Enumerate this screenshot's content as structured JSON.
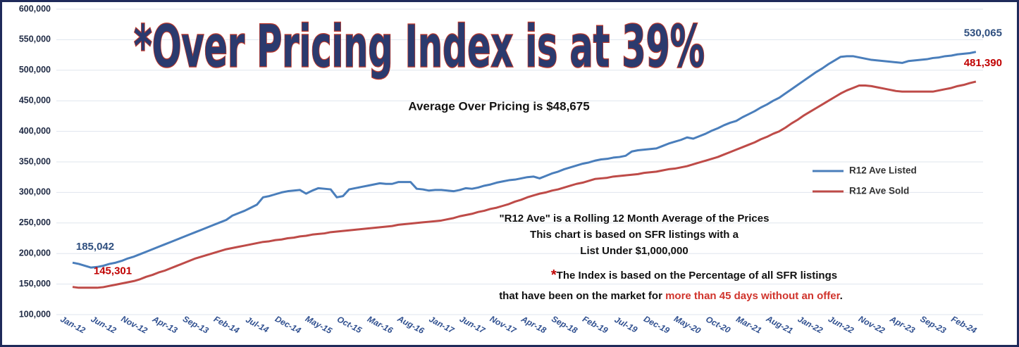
{
  "chart_data": {
    "type": "line",
    "title": "*Over Pricing Index is at 39%",
    "subtitle": "Average Over Pricing is $48,675",
    "notes": [
      "\"R12 Ave\" is a Rolling 12 Month Average of the Prices",
      "This chart is based on SFR listings with a",
      "List Under $1,000,000"
    ],
    "index_note": {
      "star": "*",
      "line1": "The Index is based on the Percentage of all SFR listings",
      "line2_start": "that have been on the market for ",
      "line2_highlight": "more than 45 days without an offer",
      "line2_end": "."
    },
    "legend": "right",
    "grid": true,
    "ylim": [
      100000,
      600000
    ],
    "yticks": [
      {
        "value": 100000,
        "label": "100,000"
      },
      {
        "value": 150000,
        "label": "150,000"
      },
      {
        "value": 200000,
        "label": "200,000"
      },
      {
        "value": 250000,
        "label": "250,000"
      },
      {
        "value": 300000,
        "label": "300,000"
      },
      {
        "value": 350000,
        "label": "350,000"
      },
      {
        "value": 400000,
        "label": "400,000"
      },
      {
        "value": 450000,
        "label": "450,000"
      },
      {
        "value": 500000,
        "label": "500,000"
      },
      {
        "value": 550000,
        "label": "550,000"
      },
      {
        "value": 600000,
        "label": "600,000"
      }
    ],
    "categories": [
      "Jan-12",
      null,
      null,
      null,
      null,
      "Jun-12",
      null,
      null,
      null,
      null,
      "Nov-12",
      null,
      null,
      null,
      null,
      "Apr-13",
      null,
      null,
      null,
      null,
      "Sep-13",
      null,
      null,
      null,
      null,
      "Feb-14",
      null,
      null,
      null,
      null,
      "Jul-14",
      null,
      null,
      null,
      null,
      "Dec-14",
      null,
      null,
      null,
      null,
      "May-15",
      null,
      null,
      null,
      null,
      "Oct-15",
      null,
      null,
      null,
      null,
      "Mar-16",
      null,
      null,
      null,
      null,
      "Aug-16",
      null,
      null,
      null,
      null,
      "Jan-17",
      null,
      null,
      null,
      null,
      "Jun-17",
      null,
      null,
      null,
      null,
      "Nov-17",
      null,
      null,
      null,
      null,
      "Apr-18",
      null,
      null,
      null,
      null,
      "Sep-18",
      null,
      null,
      null,
      null,
      "Feb-19",
      null,
      null,
      null,
      null,
      "Jul-19",
      null,
      null,
      null,
      null,
      "Dec-19",
      null,
      null,
      null,
      null,
      "May-20",
      null,
      null,
      null,
      null,
      "Oct-20",
      null,
      null,
      null,
      null,
      "Mar-21",
      null,
      null,
      null,
      null,
      "Aug-21",
      null,
      null,
      null,
      null,
      "Jan-22",
      null,
      null,
      null,
      null,
      "Jun-22",
      null,
      null,
      null,
      null,
      "Nov-22",
      null,
      null,
      null,
      null,
      "Apr-23",
      null,
      null,
      null,
      null,
      "Sep-23",
      null,
      null,
      null,
      null,
      "Feb-24",
      null,
      null
    ],
    "series": [
      {
        "name": "R12 Ave Listed",
        "color": "#4a7ebb",
        "values": [
          185042,
          183000,
          180000,
          177000,
          178000,
          180000,
          183000,
          185000,
          188000,
          192000,
          195000,
          199000,
          203000,
          207000,
          211000,
          215000,
          219000,
          223000,
          227000,
          231000,
          235000,
          239000,
          243000,
          247000,
          251000,
          255000,
          262000,
          266000,
          270000,
          275000,
          280000,
          292000,
          294000,
          297000,
          300000,
          302000,
          303000,
          304000,
          298000,
          303000,
          307000,
          306000,
          305000,
          292000,
          294000,
          305000,
          307000,
          309000,
          311000,
          313000,
          315000,
          314000,
          314000,
          317000,
          317000,
          317000,
          306000,
          305000,
          303000,
          304000,
          304000,
          303000,
          302000,
          304000,
          307000,
          306000,
          308000,
          311000,
          313000,
          316000,
          318000,
          320000,
          321000,
          323000,
          325000,
          326000,
          323000,
          327000,
          331000,
          334000,
          338000,
          341000,
          344000,
          347000,
          349000,
          352000,
          354000,
          355000,
          357000,
          358000,
          360000,
          367000,
          369000,
          370000,
          371000,
          372000,
          376000,
          380000,
          383000,
          386000,
          390000,
          388000,
          392000,
          396000,
          401000,
          405000,
          410000,
          414000,
          417000,
          423000,
          428000,
          433000,
          439000,
          444000,
          450000,
          455000,
          462000,
          469000,
          476000,
          483000,
          490000,
          497000,
          503000,
          510000,
          516000,
          522000,
          523000,
          523000,
          521000,
          519000,
          517000,
          516000,
          515000,
          514000,
          513000,
          512000,
          515000,
          516000,
          517000,
          518000,
          520000,
          521000,
          523000,
          524000,
          526000,
          527000,
          528000,
          530065
        ],
        "value_labels": {
          "0": "185,042",
          "147": "530,065"
        }
      },
      {
        "name": "R12 Ave Sold",
        "color": "#be4b48",
        "values": [
          145301,
          144000,
          144000,
          144000,
          144000,
          145000,
          147000,
          149000,
          151000,
          153000,
          155000,
          158000,
          162000,
          165000,
          169000,
          172000,
          176000,
          180000,
          184000,
          188000,
          192000,
          195000,
          198000,
          201000,
          204000,
          207000,
          209000,
          211000,
          213000,
          215000,
          217000,
          219000,
          220000,
          222000,
          223000,
          225000,
          226000,
          228000,
          229000,
          231000,
          232000,
          233000,
          235000,
          236000,
          237000,
          238000,
          239000,
          240000,
          241000,
          242000,
          243000,
          244000,
          245000,
          247000,
          248000,
          249000,
          250000,
          251000,
          252000,
          253000,
          254000,
          256000,
          258000,
          261000,
          263000,
          265000,
          268000,
          270000,
          273000,
          275000,
          278000,
          281000,
          285000,
          288000,
          292000,
          295000,
          298000,
          300000,
          303000,
          305000,
          308000,
          311000,
          314000,
          316000,
          319000,
          322000,
          323000,
          324000,
          326000,
          327000,
          328000,
          329000,
          330000,
          332000,
          333000,
          334000,
          336000,
          338000,
          339000,
          341000,
          343000,
          346000,
          349000,
          352000,
          355000,
          358000,
          362000,
          366000,
          370000,
          374000,
          378000,
          382000,
          387000,
          391000,
          396000,
          400000,
          406000,
          413000,
          419000,
          426000,
          432000,
          438000,
          444000,
          450000,
          456000,
          462000,
          467000,
          471000,
          475000,
          475000,
          474000,
          472000,
          470000,
          468000,
          466000,
          465000,
          465000,
          465000,
          465000,
          465000,
          465000,
          467000,
          469000,
          471000,
          474000,
          476000,
          479000,
          481390
        ],
        "value_labels": {
          "0": "145,301",
          "147": "481,390"
        }
      }
    ]
  }
}
